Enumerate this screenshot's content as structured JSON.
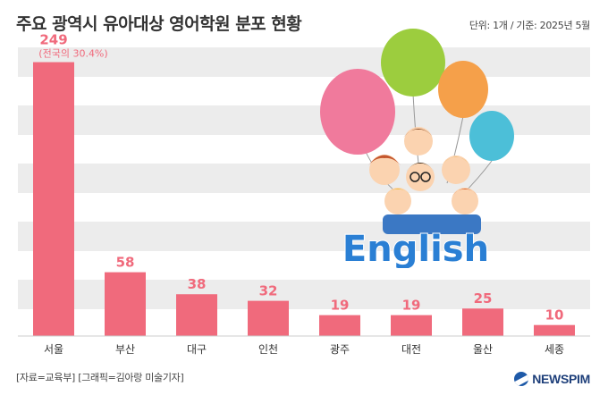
{
  "title": "주요 광역시 유아대상 영어학원 분포 현황",
  "unit_note": "단위: 1개 / 기준: 2025년 5월",
  "source": "[자료=교육부] [그래픽=김아랑 미술기자]",
  "brand": "NEWSPIM",
  "chart_data": {
    "type": "bar",
    "categories": [
      "서울",
      "부산",
      "대구",
      "인천",
      "광주",
      "대전",
      "울산",
      "세종"
    ],
    "values": [
      249,
      58,
      38,
      32,
      19,
      19,
      25,
      10
    ],
    "annotations": [
      {
        "category": "서울",
        "text": "(전국의 30.4%)"
      }
    ],
    "ylim": [
      0,
      260
    ],
    "bar_color": "#f06a7c",
    "label_color": "#f06a7c",
    "band_color": "#ececec"
  },
  "illustration": {
    "word": "English",
    "balloon_colors": [
      "#f07a9c",
      "#9ccd3e",
      "#f5a04a",
      "#4cbfd8"
    ]
  }
}
